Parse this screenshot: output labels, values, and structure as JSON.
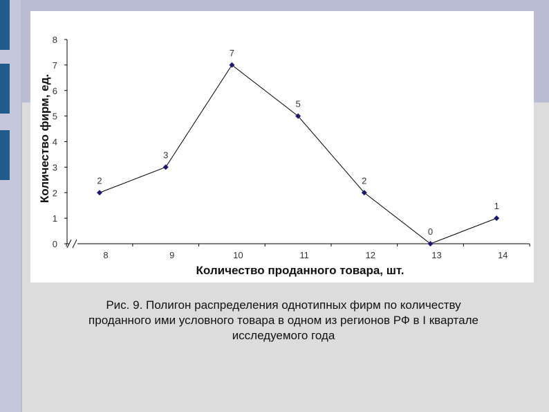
{
  "chart_data": {
    "type": "line",
    "x": [
      8,
      9,
      10,
      11,
      12,
      13,
      14
    ],
    "series": [
      {
        "values": [
          2,
          3,
          7,
          5,
          2,
          0,
          1
        ]
      }
    ],
    "data_labels": [
      "2",
      "3",
      "7",
      "5",
      "2",
      "0",
      "1"
    ],
    "x_tick_labels": [
      "8",
      "9",
      "10",
      "11",
      "12",
      "13",
      "14"
    ],
    "y_tick_labels": [
      "0",
      "1",
      "2",
      "3",
      "4",
      "5",
      "6",
      "7",
      "8"
    ],
    "xlabel": "Количество проданного товара, шт.",
    "ylabel": "Количество фирм, ед.",
    "ylim": [
      0,
      8
    ],
    "grid": false,
    "line_color": "#000000",
    "marker_color": "#1a1a6e"
  },
  "caption": {
    "line1": "Рис. 9. Полигон распределения однотипных фирм по количеству",
    "line2": "проданного ими условного  товара в одном из регионов РФ в I квартале",
    "line3": "исследуемого года"
  }
}
